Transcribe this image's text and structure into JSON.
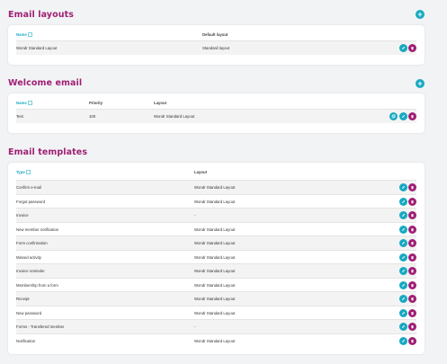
{
  "layouts": {
    "title": "Email layouts",
    "add_label": "+",
    "headers": {
      "name": "Name",
      "default_layout": "Default layout"
    },
    "rows": [
      {
        "name": "Wondr Standard Layout",
        "default_layout": "Standard layout"
      }
    ]
  },
  "welcome": {
    "title": "Welcome email",
    "add_label": "+",
    "headers": {
      "name": "Name",
      "priority": "Priority",
      "layout": "Layout"
    },
    "rows": [
      {
        "name": "Test",
        "priority": "100",
        "layout": "Wondr Standard Layout"
      }
    ]
  },
  "templates": {
    "title": "Email templates",
    "headers": {
      "type": "Type",
      "layout": "Layout"
    },
    "rows": [
      {
        "type": "Confirm e-mail",
        "layout": "Wondr Standard Layout"
      },
      {
        "type": "Forgot password",
        "layout": "Wondr Standard Layout"
      },
      {
        "type": "Invoice",
        "layout": "-"
      },
      {
        "type": "New member notification",
        "layout": "Wondr Standard Layout"
      },
      {
        "type": "Form confirmation",
        "layout": "Wondr Standard Layout"
      },
      {
        "type": "Missed activity",
        "layout": "Wondr Standard Layout"
      },
      {
        "type": "Invoice reminder",
        "layout": "Wondr Standard Layout"
      },
      {
        "type": "Membership from a form",
        "layout": "Wondr Standard Layout"
      },
      {
        "type": "Receipt",
        "layout": "Wondr Standard Layout"
      },
      {
        "type": "New password",
        "layout": "Wondr Standard Layout"
      },
      {
        "type": "Forms - Transfered member",
        "layout": "-"
      },
      {
        "type": "Notification",
        "layout": "Wondr Standard Layout"
      }
    ]
  },
  "colors": {
    "accent": "#17a9c2",
    "brand": "#9e1f74",
    "background": "#f2f3f5"
  },
  "icons": {
    "edit": "pencil-icon",
    "duplicate": "copy-icon",
    "delete": "trash-icon",
    "sort": "sort-icon"
  }
}
